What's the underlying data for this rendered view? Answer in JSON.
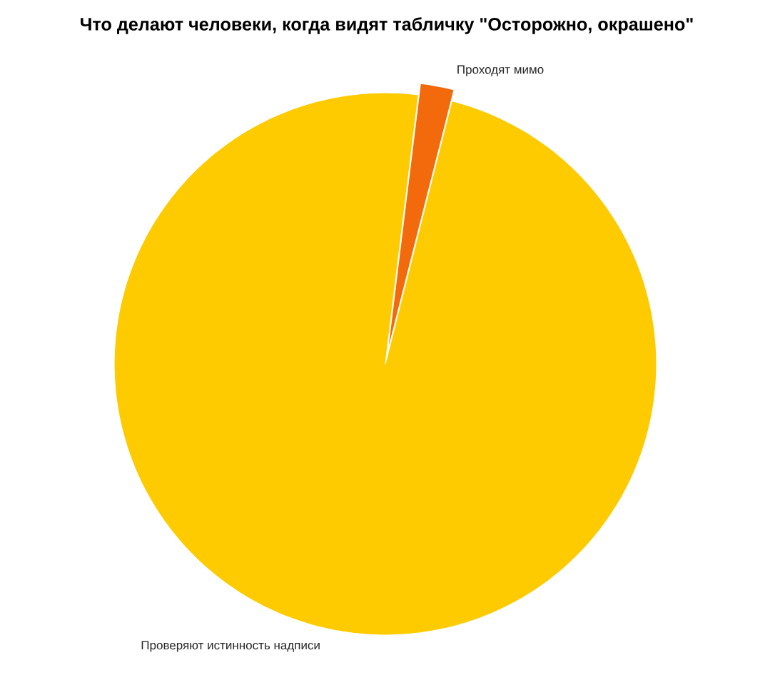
{
  "chart_data": {
    "type": "pie",
    "title": "Что делают человеки, когда видят табличку \"Осторожно, окрашено\"",
    "categories": [
      "Проходят мимо",
      "Проверяют истинность надписи"
    ],
    "values": [
      2,
      98
    ],
    "colors": [
      "#f26a0c",
      "#fdcb00"
    ]
  }
}
